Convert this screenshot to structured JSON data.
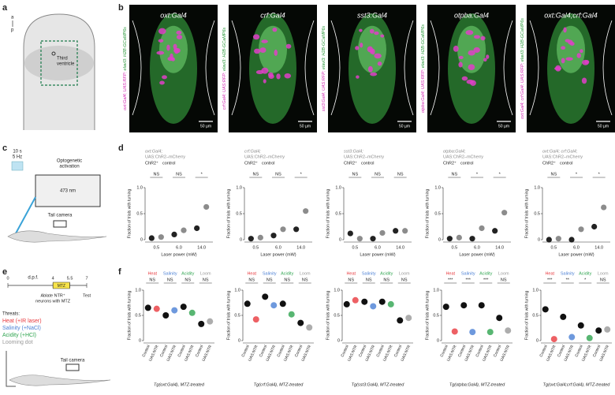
{
  "panel_a": {
    "label": "a",
    "axis": [
      "a",
      "p"
    ],
    "ventricle": [
      "Third",
      "ventricle"
    ]
  },
  "panel_b": {
    "label": "b",
    "images": [
      {
        "title": "oxt:Gal4",
        "side_magenta": "oxt:Gal4; UAS:RFP;",
        "side_green": "elavl3: H2B-GCaMP6s",
        "scale": "50 µm"
      },
      {
        "title": "crf:Gal4",
        "side_magenta": "crf:Gal4; UAS:RFP;",
        "side_green": "elavl3: H2B-GCaMP6s",
        "scale": "50 µm"
      },
      {
        "title": "sst3:Gal4",
        "side_magenta": "sst3:Gal4; UAS:RFP;",
        "side_green": "elavl3: H2B-GCaMP6s",
        "scale": "50 µm"
      },
      {
        "title": "otpba:Gal4",
        "side_magenta": "otpba:Gal4; UAS:RFP;",
        "side_green": "elavl3: H2B-GCaMP6s",
        "scale": "50 µm"
      },
      {
        "title": "oxt:Gal4;crf:Gal4",
        "side_magenta": "oxt:Gal4; crf:Gal4; UAS:RFP;",
        "side_green": "elavl3: H2B-GCaMP6s",
        "scale": "50 µm"
      }
    ]
  },
  "panel_c": {
    "label": "c",
    "pulse": [
      "10 s",
      "5 Hz"
    ],
    "activation": [
      "Optogenetic",
      "activation"
    ],
    "laser": "473 nm",
    "camera": "Tail camera"
  },
  "panel_d": {
    "label": "d",
    "charts": [
      {
        "type": "dot",
        "genotype": [
          "oxt:Gal4;",
          "UAS:ChR2–mCherry"
        ],
        "categories": [
          "0.5",
          "6.0",
          "14.0"
        ],
        "series": [
          {
            "name": "ChR2⁺",
            "color": "#8c8c8c",
            "values": [
              0.05,
              0.18,
              0.63
            ]
          },
          {
            "name": "control",
            "color": "#222222",
            "values": [
              0.03,
              0.1,
              0.22
            ]
          }
        ],
        "significance": [
          "NS",
          "NS",
          "*"
        ],
        "ylabel": "Fraction of trials with turning",
        "xlabel": "Laser power (mW)",
        "ylim": [
          0,
          1
        ],
        "yticks": [
          0,
          0.5,
          {
            "value": 1,
            "label": "1.0"
          }
        ]
      },
      {
        "type": "dot",
        "genotype": [
          "crf:Gal4;",
          "UAS:ChR2–mCherry"
        ],
        "categories": [
          "0.5",
          "6.0",
          "14.0"
        ],
        "series": [
          {
            "name": "ChR2⁺",
            "color": "#8c8c8c",
            "values": [
              0.04,
              0.2,
              0.55
            ]
          },
          {
            "name": "control",
            "color": "#222222",
            "values": [
              0.02,
              0.08,
              0.2
            ]
          }
        ],
        "significance": [
          "NS",
          "NS",
          "*"
        ],
        "ylabel": "Fraction of trials with turning",
        "xlabel": "Laser power (mW)",
        "ylim": [
          0,
          1
        ],
        "yticks": [
          0,
          0.5,
          {
            "value": 1,
            "label": "1.0"
          }
        ]
      },
      {
        "type": "dot",
        "genotype": [
          "sst3:Gal4;",
          "UAS:ChR2–mCherry"
        ],
        "categories": [
          "0.5",
          "6.0",
          "14.0"
        ],
        "series": [
          {
            "name": "ChR2⁺",
            "color": "#8c8c8c",
            "values": [
              0.02,
              0.13,
              0.17
            ]
          },
          {
            "name": "control",
            "color": "#222222",
            "values": [
              0.12,
              0.02,
              0.17
            ]
          }
        ],
        "significance": [
          "NS",
          "NS",
          "NS"
        ],
        "ylabel": "Fraction of trials with turning",
        "xlabel": "Laser power (mW)",
        "ylim": [
          0,
          1
        ],
        "yticks": [
          0,
          0.5,
          {
            "value": 1,
            "label": "1.0"
          }
        ]
      },
      {
        "type": "dot",
        "genotype": [
          "otpba:Gal4;",
          "UAS:ChR2–mCherry"
        ],
        "categories": [
          "0.5",
          "6.0",
          "14.0"
        ],
        "series": [
          {
            "name": "ChR2⁺",
            "color": "#8c8c8c",
            "values": [
              0.04,
              0.22,
              0.52
            ]
          },
          {
            "name": "control",
            "color": "#222222",
            "values": [
              0.02,
              0.02,
              0.17
            ]
          }
        ],
        "significance": [
          "NS",
          "*",
          "*"
        ],
        "ylabel": "Fraction of trials with turning",
        "xlabel": "Laser power (mW)",
        "ylim": [
          0,
          1
        ],
        "yticks": [
          0,
          0.5,
          {
            "value": 1,
            "label": "1.0"
          }
        ]
      },
      {
        "type": "dot",
        "genotype": [
          "oxt:Gal4; crf:Gal4;",
          "UAS:ChR2–mCherry"
        ],
        "categories": [
          "0.5",
          "6.0",
          "14.0"
        ],
        "series": [
          {
            "name": "ChR2⁺",
            "color": "#8c8c8c",
            "values": [
              0.02,
              0.2,
              0.62
            ]
          },
          {
            "name": "control",
            "color": "#222222",
            "values": [
              0,
              0,
              0.25
            ]
          }
        ],
        "significance": [
          "NS",
          "*",
          "*"
        ],
        "ylabel": "Fraction of trials with turning",
        "xlabel": "Laser power (mW)",
        "ylim": [
          0,
          1
        ],
        "yticks": [
          0,
          0.5,
          {
            "value": 1,
            "label": "1.0"
          }
        ]
      }
    ]
  },
  "panel_e": {
    "label": "e",
    "timeline": {
      "ticks": [
        0,
        4,
        5.5,
        7
      ],
      "xlim": [
        0,
        7
      ],
      "unit": "d.p.f.",
      "drug": "MTZ",
      "ablate": [
        "Ablate NTR⁺",
        "neurons with MTZ"
      ],
      "test": "Test"
    },
    "threats_title": "Threats:",
    "threats": [
      {
        "name": "Heat (+IR laser)",
        "color": "#e8383d"
      },
      {
        "name": "Salinity (+NaCl)",
        "color": "#4a7fd4"
      },
      {
        "name": "Acidity (+HCl)",
        "color": "#2ea44f"
      },
      {
        "name": "Looming dot",
        "color": "#999999"
      }
    ],
    "camera": "Tail camera"
  },
  "panel_f": {
    "label": "f",
    "charts": [
      {
        "type": "paired",
        "categories": [
          "Control",
          "UAS:NTR"
        ],
        "groups": [
          {
            "name": "Heat",
            "color": "#e8383d",
            "significance": "NS",
            "values": [
              0.65,
              0.63
            ]
          },
          {
            "name": "Salinity",
            "color": "#4a7fd4",
            "significance": "NS",
            "values": [
              0.5,
              0.6
            ]
          },
          {
            "name": "Acidity",
            "color": "#2ea44f",
            "significance": "NS",
            "values": [
              0.67,
              0.55
            ]
          },
          {
            "name": "Loom",
            "color": "#999999",
            "significance": "NS",
            "values": [
              0.33,
              0.38
            ]
          }
        ],
        "xlabel": "Tg(oxt:Gal4), MTZ-treated",
        "ylabel": "Fraction of trials with turning",
        "ylim": [
          0,
          1
        ],
        "yticks": [
          0,
          0.5,
          {
            "value": 1,
            "label": "1.0"
          }
        ]
      },
      {
        "type": "paired",
        "categories": [
          "Control",
          "UAS:NTR"
        ],
        "groups": [
          {
            "name": "Heat",
            "color": "#e8383d",
            "significance": "NS",
            "values": [
              0.73,
              0.42
            ]
          },
          {
            "name": "Salinity",
            "color": "#4a7fd4",
            "significance": "NS",
            "values": [
              0.87,
              0.7
            ]
          },
          {
            "name": "Acidity",
            "color": "#2ea44f",
            "significance": "NS",
            "values": [
              0.73,
              0.52
            ]
          },
          {
            "name": "Loom",
            "color": "#999999",
            "significance": "NS",
            "values": [
              0.35,
              0.26
            ]
          }
        ],
        "xlabel": "Tg(crf:Gal4), MTZ-treated",
        "ylabel": "Fraction of trials with turning",
        "ylim": [
          0,
          1
        ],
        "yticks": [
          0,
          0.5,
          {
            "value": 1,
            "label": "1.0"
          }
        ]
      },
      {
        "type": "paired",
        "categories": [
          "Control",
          "UAS:NTR"
        ],
        "groups": [
          {
            "name": "Heat",
            "color": "#e8383d",
            "significance": "NS",
            "values": [
              0.72,
              0.8
            ]
          },
          {
            "name": "Salinity",
            "color": "#4a7fd4",
            "significance": "NS",
            "values": [
              0.77,
              0.68
            ]
          },
          {
            "name": "Acidity",
            "color": "#2ea44f",
            "significance": "NS",
            "values": [
              0.77,
              0.72
            ]
          },
          {
            "name": "Loom",
            "color": "#999999",
            "significance": "NS",
            "values": [
              0.4,
              0.45
            ]
          }
        ],
        "xlabel": "Tg(sst3:Gal4), MTZ-treated",
        "ylabel": "Fraction of trials with turning",
        "ylim": [
          0,
          1
        ],
        "yticks": [
          0,
          0.5,
          {
            "value": 1,
            "label": "1.0"
          }
        ]
      },
      {
        "type": "paired",
        "categories": [
          "Control",
          "UAS:NTR"
        ],
        "groups": [
          {
            "name": "Heat",
            "color": "#e8383d",
            "significance": "***",
            "values": [
              0.67,
              0.18
            ]
          },
          {
            "name": "Salinity",
            "color": "#4a7fd4",
            "significance": "***",
            "values": [
              0.7,
              0.17
            ]
          },
          {
            "name": "Acidity",
            "color": "#2ea44f",
            "significance": "***",
            "values": [
              0.7,
              0.17
            ]
          },
          {
            "name": "Loom",
            "color": "#999999",
            "significance": "NS",
            "values": [
              0.45,
              0.2
            ]
          }
        ],
        "xlabel": "Tg(otpba:Gal4), MTZ-treated",
        "ylabel": "Fraction of trials with turning",
        "ylim": [
          0,
          1
        ],
        "yticks": [
          0,
          0.5,
          {
            "value": 1,
            "label": "1.0"
          }
        ]
      },
      {
        "type": "paired",
        "categories": [
          "Control",
          "UAS:NTR"
        ],
        "groups": [
          {
            "name": "Heat",
            "color": "#e8383d",
            "significance": "***",
            "values": [
              0.62,
              0.03
            ]
          },
          {
            "name": "Salinity",
            "color": "#4a7fd4",
            "significance": "**",
            "values": [
              0.47,
              0.07
            ]
          },
          {
            "name": "Acidity",
            "color": "#2ea44f",
            "significance": "*",
            "values": [
              0.3,
              0.05
            ]
          },
          {
            "name": "Loom",
            "color": "#999999",
            "significance": "NS",
            "values": [
              0.2,
              0.22
            ]
          }
        ],
        "xlabel": "Tg(oxt:Gal4;crf:Gal4), MTZ-treated",
        "ylabel": "Fraction of trials with turning",
        "ylim": [
          0,
          1
        ],
        "yticks": [
          0,
          0.5,
          {
            "value": 1,
            "label": "1.0"
          }
        ]
      }
    ]
  }
}
